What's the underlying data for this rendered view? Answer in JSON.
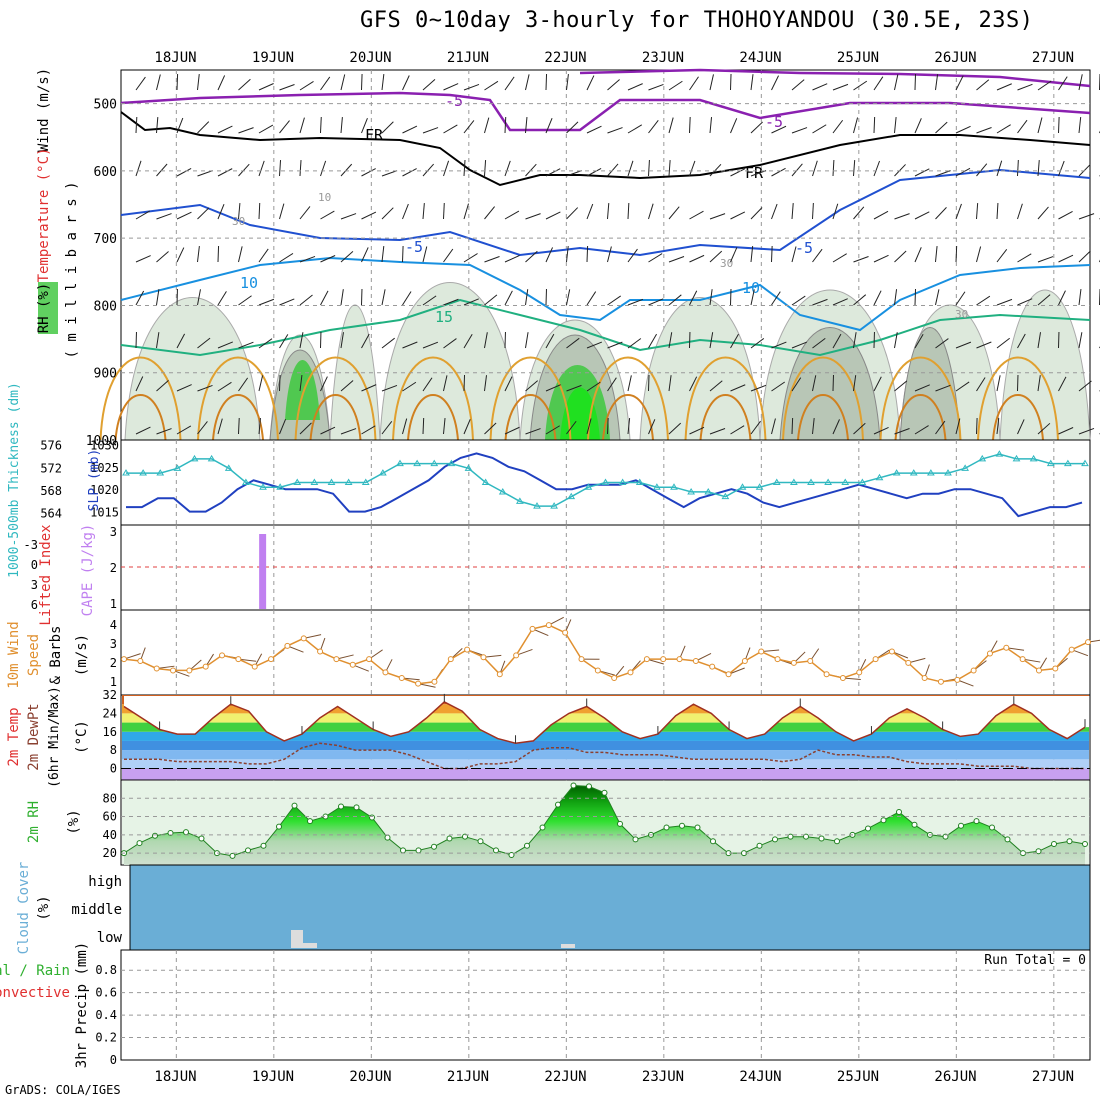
{
  "title": "GFS 0~10day 3-hourly for THOHOYANDOU (30.5E, 23S)",
  "footer": "GrADS: COLA/IGES",
  "dates": [
    "18JUN",
    "19JUN",
    "20JUN",
    "21JUN",
    "22JUN",
    "23JUN",
    "24JUN",
    "25JUN",
    "26JUN",
    "27JUN"
  ],
  "colors": {
    "temp": "#e03030",
    "rh": "#30b030",
    "thick": "#30b8c0",
    "slp": "#2040c0",
    "cape": "#c080f0",
    "wind": "#e09030",
    "cloud": "#6aaed6",
    "purple": "#8a20b0"
  },
  "chart_data": [
    {
      "type": "contour",
      "panel": "upper-air",
      "labels": {
        "wind": "Wind (m/s)",
        "temp": "Temperature (°C)",
        "rh": "RH (%)",
        "axis": "( m i l l i b a r s )"
      },
      "yticks": [
        500,
        600,
        700,
        800,
        900,
        1000
      ],
      "ylim": [
        1000,
        450
      ],
      "contour_labels": [
        "-5",
        "-5",
        "FR",
        "FR",
        "-5",
        "-5",
        "10",
        "10",
        "15",
        "30",
        "30",
        "30",
        "10"
      ]
    },
    {
      "type": "line",
      "panel": "thickness-slp",
      "labels": {
        "thick": "1000-500mb Thickness (dm)",
        "slp": "SLP (mb)"
      },
      "thick_ticks": [
        564,
        568,
        572,
        576
      ],
      "slp_ticks": [
        1015,
        1020,
        1025,
        1030
      ],
      "slp": [
        1016,
        1016,
        1018,
        1018,
        1015,
        1015,
        1017,
        1020,
        1022,
        1021,
        1020,
        1020,
        1020,
        1019,
        1015,
        1015,
        1016,
        1018,
        1020,
        1022,
        1025,
        1027,
        1028,
        1027,
        1025,
        1024,
        1022,
        1020,
        1020,
        1021,
        1021,
        1021,
        1022,
        1020,
        1018,
        1016,
        1018,
        1019,
        1020,
        1019,
        1017,
        1016,
        1017,
        1018,
        1019,
        1020,
        1021,
        1020,
        1019,
        1018,
        1019,
        1019,
        1020,
        1020,
        1019,
        1018,
        1014,
        1015,
        1016,
        1016,
        1017
      ],
      "thick": [
        572,
        572,
        572,
        573,
        575,
        575,
        573,
        570,
        569,
        569,
        570,
        570,
        570,
        570,
        570,
        572,
        574,
        574,
        574,
        574,
        573,
        570,
        568,
        566,
        565,
        565,
        567,
        569,
        570,
        570,
        570,
        569,
        569,
        568,
        568,
        567,
        569,
        569,
        570,
        570,
        570,
        570,
        570,
        570,
        571,
        572,
        572,
        572,
        572,
        573,
        575,
        576,
        575,
        575,
        574,
        574,
        574
      ]
    },
    {
      "type": "bar",
      "panel": "cape-li",
      "labels": {
        "li": "Lifted Index",
        "cape": "CAPE (J/kg)"
      },
      "li_ticks": [
        "-3",
        "0",
        "3",
        "6"
      ],
      "cape_ticks": [
        "1",
        "2",
        "3"
      ],
      "cape_bar_time": 1.35,
      "cape_value": 3
    },
    {
      "type": "line",
      "panel": "wind10m",
      "labels": {
        "a": "10m Wind",
        "b": "Speed",
        "c": "& Barbs",
        "unit": "(m/s)"
      },
      "yticks": [
        1,
        2,
        3,
        4
      ],
      "speed": [
        2.2,
        2.1,
        1.7,
        1.6,
        1.6,
        1.8,
        2.4,
        2.2,
        1.8,
        2.2,
        2.9,
        3.3,
        2.6,
        2.2,
        1.9,
        2.2,
        1.5,
        1.2,
        0.9,
        1.0,
        2.2,
        2.7,
        2.3,
        1.4,
        2.4,
        3.8,
        4.0,
        3.6,
        2.2,
        1.6,
        1.2,
        1.5,
        2.2,
        2.2,
        2.2,
        2.1,
        1.8,
        1.4,
        2.1,
        2.6,
        2.2,
        2.0,
        2.1,
        1.4,
        1.2,
        1.5,
        2.2,
        2.6,
        2.0,
        1.2,
        1.0,
        1.1,
        1.6,
        2.5,
        2.8,
        2.2,
        1.6,
        1.7,
        2.7,
        3.1
      ]
    },
    {
      "type": "area",
      "panel": "temp2m",
      "labels": {
        "a": "2m Temp",
        "b": "2m DewPt",
        "c": "(6hr Min/Max)",
        "unit": "(°C)"
      },
      "yticks": [
        0,
        8,
        16,
        24,
        32
      ],
      "temp": [
        27,
        22,
        17,
        15,
        15,
        22,
        28,
        25,
        16,
        12,
        15,
        22,
        27,
        22,
        17,
        14,
        16,
        22,
        29,
        25,
        17,
        13,
        11,
        12,
        19,
        24,
        27,
        22,
        16,
        13,
        15,
        23,
        28,
        24,
        17,
        13,
        15,
        22,
        27,
        22,
        16,
        12,
        15,
        22,
        26,
        22,
        17,
        14,
        15,
        23,
        28,
        24,
        17,
        13,
        18
      ],
      "dew": [
        4,
        4,
        4,
        3,
        3,
        3,
        3,
        2,
        2,
        4,
        9,
        11,
        10,
        8,
        8,
        8,
        6,
        3,
        0,
        0,
        2,
        2,
        3,
        8,
        9,
        9,
        7,
        7,
        6,
        6,
        6,
        5,
        4,
        4,
        4,
        4,
        4,
        3,
        4,
        8,
        6,
        6,
        5,
        5,
        3,
        2,
        2,
        2,
        1,
        1,
        1,
        0,
        0,
        0,
        0
      ]
    },
    {
      "type": "area",
      "panel": "rh2m",
      "labels": {
        "a": "2m RH",
        "unit": "(%)"
      },
      "yticks": [
        20,
        40,
        60,
        80
      ],
      "rh": [
        20,
        31,
        39,
        42,
        43,
        36,
        20,
        17,
        23,
        28,
        49,
        72,
        55,
        60,
        71,
        70,
        59,
        37,
        23,
        23,
        27,
        36,
        38,
        33,
        23,
        18,
        28,
        48,
        73,
        94,
        93,
        86,
        52,
        35,
        40,
        48,
        50,
        48,
        33,
        20,
        20,
        28,
        35,
        38,
        38,
        36,
        33,
        40,
        47,
        56,
        65,
        51,
        40,
        38,
        50,
        55,
        48,
        35,
        20,
        22,
        30,
        33,
        30
      ]
    },
    {
      "type": "heatmap",
      "panel": "cloud",
      "labels": {
        "title": "Cloud Cover",
        "unit": "(%)",
        "high": "high",
        "middle": "middle",
        "low": "low"
      }
    },
    {
      "type": "bar",
      "panel": "precip",
      "labels": {
        "a": "Total / Rain",
        "b": "Convective",
        "axis": "3hr Precip (mm)",
        "run_total": "Run Total = 0"
      },
      "yticks": [
        "0",
        "0.2",
        "0.4",
        "0.6",
        "0.8"
      ],
      "values": []
    }
  ]
}
